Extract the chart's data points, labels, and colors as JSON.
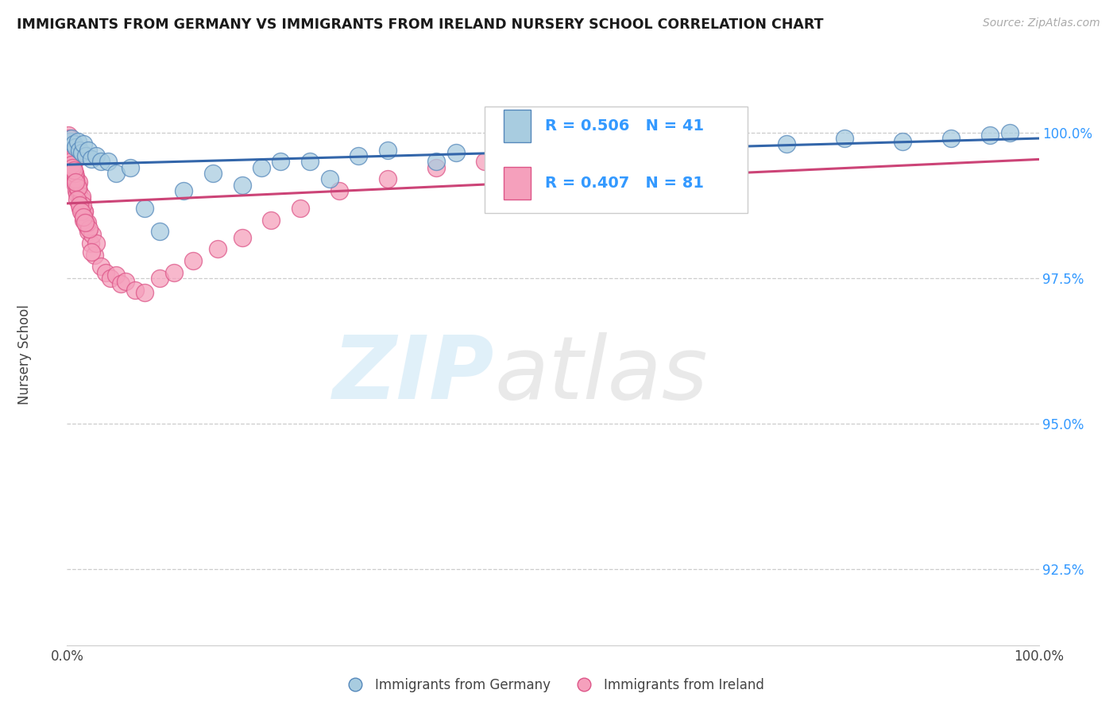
{
  "title": "IMMIGRANTS FROM GERMANY VS IMMIGRANTS FROM IRELAND NURSERY SCHOOL CORRELATION CHART",
  "source": "Source: ZipAtlas.com",
  "ylabel": "Nursery School",
  "ytick_labels": [
    "92.5%",
    "95.0%",
    "97.5%",
    "100.0%"
  ],
  "ytick_values": [
    92.5,
    95.0,
    97.5,
    100.0
  ],
  "xlim": [
    0.0,
    100.0
  ],
  "ylim": [
    91.2,
    101.3
  ],
  "legend_r_germany": "R = 0.506",
  "legend_n_germany": "N = 41",
  "legend_r_ireland": "R = 0.407",
  "legend_n_ireland": "N = 81",
  "germany_fill": "#a8cce0",
  "germany_edge": "#5588bb",
  "ireland_fill": "#f5a0bc",
  "ireland_edge": "#dd5588",
  "germany_line_color": "#3366aa",
  "ireland_line_color": "#cc4477",
  "legend_text_color": "#3399ff",
  "ytick_color": "#3399ff",
  "germany_x": [
    0.3,
    0.5,
    0.7,
    0.9,
    1.1,
    1.3,
    1.5,
    1.7,
    1.9,
    2.2,
    2.5,
    3.0,
    3.5,
    4.2,
    5.0,
    6.5,
    8.0,
    9.5,
    12.0,
    15.0,
    18.0,
    22.0,
    27.0,
    33.0,
    38.0,
    44.0,
    50.0,
    56.0,
    62.0,
    68.0,
    74.0,
    80.0,
    86.0,
    91.0,
    95.0,
    20.0,
    25.0,
    30.0,
    40.0,
    48.0,
    97.0
  ],
  "germany_y": [
    99.85,
    99.9,
    99.8,
    99.75,
    99.85,
    99.7,
    99.65,
    99.8,
    99.6,
    99.7,
    99.55,
    99.6,
    99.5,
    99.5,
    99.3,
    99.4,
    98.7,
    98.3,
    99.0,
    99.3,
    99.1,
    99.5,
    99.2,
    99.7,
    99.5,
    99.6,
    99.7,
    99.75,
    99.8,
    99.85,
    99.8,
    99.9,
    99.85,
    99.9,
    99.95,
    99.4,
    99.5,
    99.6,
    99.65,
    99.7,
    100.0
  ],
  "ireland_x": [
    0.1,
    0.15,
    0.2,
    0.25,
    0.3,
    0.35,
    0.4,
    0.45,
    0.5,
    0.55,
    0.6,
    0.65,
    0.7,
    0.75,
    0.8,
    0.85,
    0.9,
    0.95,
    1.0,
    1.1,
    1.2,
    1.3,
    1.4,
    1.5,
    1.6,
    1.7,
    1.8,
    1.9,
    2.0,
    2.2,
    2.4,
    2.6,
    2.8,
    3.0,
    3.5,
    4.0,
    4.5,
    5.0,
    5.5,
    6.0,
    7.0,
    8.0,
    9.5,
    11.0,
    13.0,
    15.5,
    18.0,
    21.0,
    24.0,
    28.0,
    33.0,
    38.0,
    43.0,
    49.0,
    56.0,
    62.0,
    68.0,
    1.2,
    1.5,
    1.8,
    2.1,
    0.6,
    0.9,
    0.4,
    0.3,
    0.5,
    0.8,
    1.1,
    1.6,
    2.3,
    0.35,
    0.45,
    0.55,
    0.7,
    0.85,
    1.05,
    1.25,
    1.45,
    1.65,
    1.85,
    2.5
  ],
  "ireland_y": [
    99.95,
    99.8,
    99.9,
    99.7,
    99.65,
    99.6,
    99.75,
    99.55,
    99.5,
    99.6,
    99.45,
    99.35,
    99.5,
    99.2,
    99.3,
    99.1,
    99.25,
    99.0,
    98.95,
    99.1,
    99.0,
    98.8,
    98.7,
    98.85,
    98.6,
    98.5,
    98.65,
    98.45,
    98.4,
    98.3,
    98.1,
    98.25,
    97.9,
    98.1,
    97.7,
    97.6,
    97.5,
    97.55,
    97.4,
    97.45,
    97.3,
    97.25,
    97.5,
    97.6,
    97.8,
    98.0,
    98.2,
    98.5,
    98.7,
    99.0,
    99.2,
    99.4,
    99.5,
    99.6,
    99.7,
    99.75,
    99.8,
    99.15,
    98.9,
    98.65,
    98.45,
    99.4,
    99.2,
    99.7,
    99.6,
    99.55,
    99.3,
    99.05,
    98.75,
    98.35,
    99.5,
    99.45,
    99.4,
    99.35,
    99.15,
    98.85,
    98.75,
    98.65,
    98.55,
    98.45,
    97.95
  ]
}
